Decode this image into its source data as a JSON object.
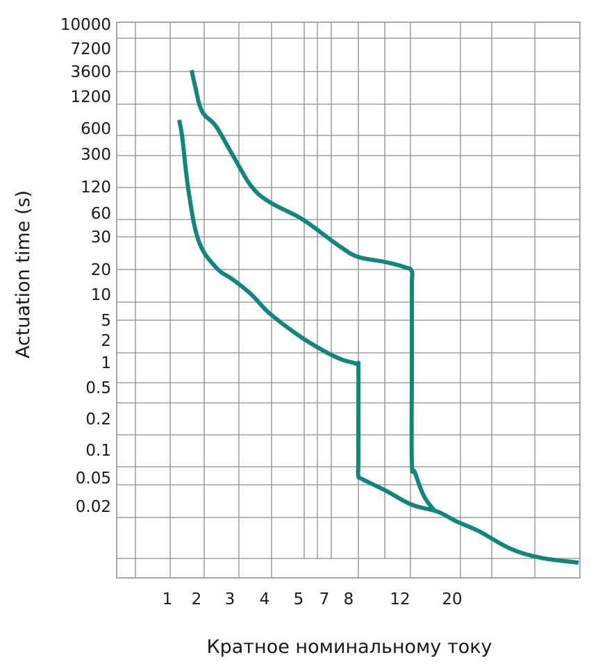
{
  "chart_data": {
    "type": "line",
    "title": "",
    "xlabel": "Кратное номинальному току",
    "ylabel": "Actuation time (s)",
    "x_tick_labels": [
      "1",
      "2",
      "3",
      "4",
      "5",
      "7",
      "8",
      "12",
      "20"
    ],
    "y_tick_labels": [
      "10000",
      "7200",
      "3600",
      "1200",
      "600",
      "300",
      "120",
      "60",
      "30",
      "20",
      "10",
      "5",
      "2",
      "1",
      "0.5",
      "0.2",
      "0.1",
      "0.05",
      "0.02"
    ],
    "grid": true,
    "line_color": "#12857f",
    "series": [
      {
        "x": [
          1.7,
          1.85,
          2.1,
          2.5,
          3.0,
          3.5,
          4.0,
          5.0,
          6.0,
          7.0,
          8.0,
          10.0,
          11.5,
          12.0,
          12.0,
          12.0,
          12.0,
          12.3,
          13.2,
          14.3
        ],
        "y": [
          3600,
          2400,
          1000,
          650,
          300,
          170,
          110,
          70,
          45,
          32,
          26,
          23,
          20,
          18,
          10,
          1,
          0.1,
          0.07,
          0.035,
          0.022
        ]
      },
      {
        "x": [
          1.3,
          1.4,
          1.6,
          2.0,
          2.5,
          3.0,
          3.5,
          4.0,
          5.0,
          6.0,
          7.0,
          7.9,
          8.0,
          8.0,
          8.0,
          8.0,
          8.3,
          10.0,
          12.0,
          14.5,
          17.0,
          20.0,
          25.0,
          30.0,
          40.0
        ],
        "y": [
          800,
          500,
          150,
          40,
          20,
          14,
          9,
          6,
          3.5,
          2.2,
          1.6,
          1.3,
          1.0,
          0.5,
          0.1,
          0.06,
          0.05,
          0.04,
          0.028,
          0.022,
          0.017,
          0.013,
          0.009,
          0.007,
          0.006
        ]
      }
    ]
  }
}
